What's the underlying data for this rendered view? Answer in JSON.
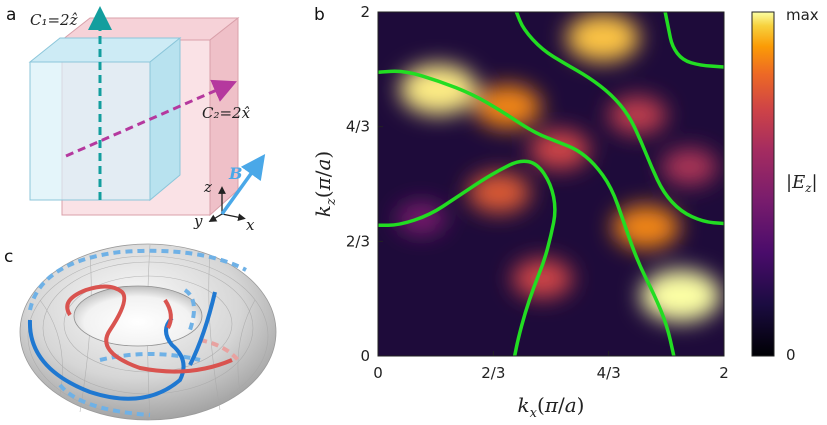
{
  "panels": {
    "a": {
      "letter": "a",
      "c1_label": "C₁=2ẑ",
      "c2_label": "C₂=2x̂",
      "field_label": "B",
      "axis_z": "z",
      "axis_y": "y",
      "axis_x": "x"
    },
    "b": {
      "letter": "b"
    },
    "c": {
      "letter": "c"
    }
  },
  "colorbar": {
    "max_label": "max",
    "min_label": "0",
    "title": "|E_z|"
  },
  "colors": {
    "curve_green": "#22dd22",
    "torus_blue": "#1f78d1",
    "torus_red": "#d9534f",
    "c1_arrow": "#139e9e",
    "c2_arrow": "#b5389e",
    "b_arrow": "#4aa8e8"
  },
  "chart_data": {
    "type": "heatmap",
    "title": "",
    "xlabel": "k_x(π/a)",
    "ylabel": "k_z(π/a)",
    "xlim": [
      0,
      2
    ],
    "ylim": [
      0,
      2
    ],
    "x_ticks": [
      "0",
      "2/3",
      "4/3",
      "2"
    ],
    "y_ticks": [
      "0",
      "2/3",
      "4/3",
      "2"
    ],
    "colorbar_range": [
      "0",
      "max"
    ],
    "hotspots": [
      {
        "x": 0.35,
        "y": 1.55,
        "intensity": 0.95
      },
      {
        "x": 0.75,
        "y": 1.45,
        "intensity": 0.7
      },
      {
        "x": 1.3,
        "y": 1.85,
        "intensity": 0.85
      },
      {
        "x": 1.75,
        "y": 0.35,
        "intensity": 1.0
      },
      {
        "x": 1.55,
        "y": 0.75,
        "intensity": 0.7
      },
      {
        "x": 0.7,
        "y": 0.95,
        "intensity": 0.6
      },
      {
        "x": 1.05,
        "y": 1.2,
        "intensity": 0.55
      },
      {
        "x": 1.5,
        "y": 1.4,
        "intensity": 0.5
      },
      {
        "x": 1.8,
        "y": 1.1,
        "intensity": 0.45
      },
      {
        "x": 0.95,
        "y": 0.45,
        "intensity": 0.55
      },
      {
        "x": 0.25,
        "y": 0.8,
        "intensity": 0.3
      }
    ],
    "curves": [
      {
        "name": "",
        "points": [
          [
            0,
            1.65
          ],
          [
            0.15,
            1.66
          ],
          [
            0.35,
            1.6
          ],
          [
            0.55,
            1.52
          ],
          [
            0.72,
            1.42
          ],
          [
            0.9,
            1.3
          ],
          [
            1.05,
            1.24
          ],
          [
            1.15,
            1.2
          ],
          [
            1.25,
            1.12
          ],
          [
            1.35,
            0.98
          ],
          [
            1.42,
            0.78
          ],
          [
            1.5,
            0.55
          ],
          [
            1.6,
            0.35
          ],
          [
            1.67,
            0.18
          ],
          [
            1.71,
            0
          ]
        ]
      },
      {
        "name": "",
        "points": [
          [
            0,
            0.76
          ],
          [
            0.12,
            0.76
          ],
          [
            0.3,
            0.82
          ],
          [
            0.45,
            0.92
          ],
          [
            0.6,
            1.02
          ],
          [
            0.7,
            1.08
          ],
          [
            0.82,
            1.14
          ],
          [
            0.92,
            1.12
          ],
          [
            1.0,
            1.0
          ],
          [
            1.03,
            0.85
          ],
          [
            1.0,
            0.7
          ],
          [
            0.96,
            0.55
          ],
          [
            0.9,
            0.4
          ],
          [
            0.85,
            0.25
          ],
          [
            0.81,
            0.1
          ],
          [
            0.79,
            0
          ]
        ]
      },
      {
        "name": "",
        "points": [
          [
            0.8,
            2
          ],
          [
            0.84,
            1.9
          ],
          [
            0.95,
            1.78
          ],
          [
            1.08,
            1.7
          ],
          [
            1.22,
            1.62
          ],
          [
            1.35,
            1.52
          ],
          [
            1.45,
            1.4
          ],
          [
            1.52,
            1.25
          ],
          [
            1.58,
            1.1
          ],
          [
            1.65,
            0.95
          ],
          [
            1.75,
            0.84
          ],
          [
            1.88,
            0.78
          ],
          [
            2,
            0.77
          ]
        ]
      },
      {
        "name": "",
        "points": [
          [
            1.66,
            2
          ],
          [
            1.68,
            1.9
          ],
          [
            1.7,
            1.8
          ],
          [
            1.76,
            1.72
          ],
          [
            1.86,
            1.69
          ],
          [
            2,
            1.68
          ]
        ]
      }
    ]
  }
}
